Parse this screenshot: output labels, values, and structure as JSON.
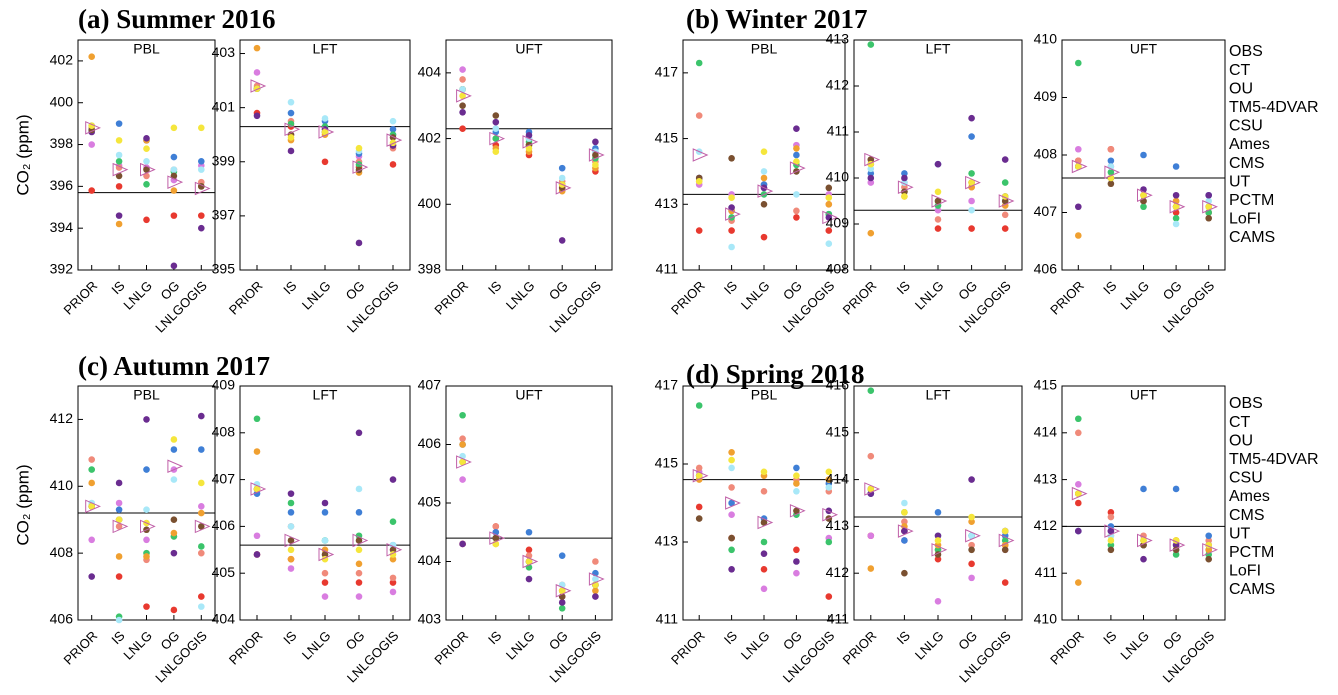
{
  "group_titles": [
    "(a) Summer 2016",
    "(b) Winter 2017",
    "(c) Autumn  2017",
    "(d) Spring 2018"
  ],
  "y_label": "CO₂ (ppm)",
  "categories": [
    "PRIOR",
    "IS",
    "LNLG",
    "OG",
    "LNLGOGIS"
  ],
  "obs_legend": {
    "name": "OBS",
    "color": "#000000"
  },
  "mean_color": "#c060a8",
  "models": [
    {
      "name": "CT",
      "color": "#e8392f"
    },
    {
      "name": "OU",
      "color": "#d97de0"
    },
    {
      "name": "TM5-4DVAR",
      "color": "#f08a7a"
    },
    {
      "name": "CSU",
      "color": "#3f7fd6"
    },
    {
      "name": "Ames",
      "color": "#3bc46b"
    },
    {
      "name": "CMS",
      "color": "#f0a030"
    },
    {
      "name": "UT",
      "color": "#a8e8f8"
    },
    {
      "name": "PCTM",
      "color": "#6a2c90"
    },
    {
      "name": "LoFI",
      "color": "#7a5030"
    },
    {
      "name": "CAMS",
      "color": "#f5e63c"
    }
  ],
  "chart_data": [
    {
      "type": "scatter",
      "title": "PBL",
      "ylim": [
        392,
        403
      ],
      "yticks": [
        392,
        394,
        396,
        398,
        400,
        402
      ],
      "obs": 395.7,
      "mean": [
        398.8,
        396.8,
        396.8,
        396.2,
        395.9
      ],
      "values": [
        [
          395.8,
          396.0,
          394.4,
          394.6,
          394.6
        ],
        [
          398.0,
          397.0,
          396.9,
          396.3,
          397.0
        ],
        [
          398.8,
          396.9,
          396.5,
          396.8,
          396.2
        ],
        [
          398.7,
          399.0,
          398.2,
          397.4,
          397.2
        ],
        [
          398.9,
          397.2,
          396.1,
          396.7,
          396.0
        ],
        [
          402.2,
          394.2,
          398.2,
          395.8,
          396.0
        ],
        [
          398.9,
          397.5,
          397.2,
          396.8,
          396.8
        ],
        [
          398.6,
          394.6,
          398.3,
          392.2,
          394.0
        ],
        [
          398.7,
          396.5,
          396.8,
          396.5,
          396.0
        ],
        [
          398.9,
          398.2,
          397.8,
          398.8,
          398.8
        ]
      ]
    },
    {
      "type": "scatter",
      "title": "LFT",
      "ylim": [
        395,
        403.5
      ],
      "yticks": [
        395,
        397,
        399,
        401,
        403
      ],
      "obs": 400.3,
      "mean": [
        401.8,
        400.2,
        400.1,
        398.8,
        399.8
      ],
      "values": [
        [
          400.8,
          400.3,
          399.0,
          398.8,
          398.9
        ],
        [
          402.3,
          400.0,
          400.2,
          399.2,
          400.0
        ],
        [
          401.8,
          400.5,
          400.1,
          399.0,
          399.5
        ],
        [
          401.7,
          400.8,
          400.5,
          399.3,
          400.2
        ],
        [
          401.7,
          400.4,
          400.3,
          398.9,
          400.0
        ],
        [
          403.2,
          399.8,
          400.0,
          398.6,
          399.6
        ],
        [
          401.7,
          401.2,
          400.6,
          399.4,
          400.5
        ],
        [
          400.7,
          399.4,
          400.2,
          396.0,
          399.6
        ],
        [
          401.7,
          400.0,
          400.1,
          398.7,
          399.9
        ],
        [
          401.7,
          399.9,
          400.1,
          399.5,
          399.7
        ]
      ]
    },
    {
      "type": "scatter",
      "title": "UFT",
      "ylim": [
        398,
        405
      ],
      "yticks": [
        398,
        400,
        402,
        404
      ],
      "obs": 402.3,
      "mean": [
        403.3,
        402.0,
        401.9,
        400.5,
        401.5
      ],
      "values": [
        [
          402.3,
          401.8,
          401.5,
          400.5,
          401.0
        ],
        [
          404.1,
          402.3,
          402.0,
          400.6,
          401.6
        ],
        [
          403.8,
          402.0,
          401.8,
          400.7,
          401.3
        ],
        [
          403.5,
          402.2,
          402.2,
          401.1,
          401.7
        ],
        [
          403.5,
          402.0,
          401.9,
          400.6,
          401.4
        ],
        [
          403.5,
          401.7,
          401.6,
          400.4,
          401.1
        ],
        [
          403.5,
          402.3,
          402.0,
          400.8,
          401.6
        ],
        [
          402.8,
          402.5,
          402.1,
          398.9,
          401.9
        ],
        [
          403.0,
          402.7,
          401.8,
          400.5,
          401.5
        ],
        [
          403.3,
          401.6,
          401.7,
          400.6,
          401.2
        ]
      ]
    },
    {
      "type": "scatter",
      "title": "PBL",
      "ylim": [
        411,
        418
      ],
      "yticks": [
        411,
        413,
        415,
        417
      ],
      "obs": 413.3,
      "mean": [
        414.5,
        412.7,
        413.4,
        414.1,
        412.6
      ],
      "values": [
        [
          412.2,
          412.2,
          412.0,
          412.6,
          412.2
        ],
        [
          413.6,
          413.3,
          413.5,
          414.8,
          413.3
        ],
        [
          415.7,
          412.5,
          413.6,
          412.8,
          413.0
        ],
        [
          413.8,
          412.8,
          413.6,
          414.5,
          412.7
        ],
        [
          417.3,
          412.6,
          413.3,
          414.2,
          412.7
        ],
        [
          413.7,
          412.8,
          413.8,
          414.7,
          413.0
        ],
        [
          414.6,
          411.7,
          414.0,
          413.3,
          411.8
        ],
        [
          413.8,
          412.9,
          413.5,
          415.3,
          412.6
        ],
        [
          413.8,
          414.4,
          413.0,
          414.0,
          413.5
        ],
        [
          413.7,
          413.2,
          414.6,
          414.3,
          413.2
        ]
      ]
    },
    {
      "type": "scatter",
      "title": "LFT",
      "ylim": [
        408,
        413
      ],
      "yticks": [
        408,
        409,
        410,
        411,
        412,
        413
      ],
      "obs": 409.3,
      "mean": [
        410.4,
        409.8,
        409.5,
        409.9,
        409.5
      ],
      "values": [
        [
          410.3,
          409.7,
          408.9,
          408.9,
          408.9
        ],
        [
          409.9,
          409.9,
          409.3,
          409.5,
          409.6
        ],
        [
          410.3,
          409.8,
          409.1,
          409.8,
          409.2
        ],
        [
          410.1,
          410.1,
          410.3,
          410.9,
          409.6
        ],
        [
          412.9,
          409.7,
          409.4,
          410.1,
          409.9
        ],
        [
          408.8,
          409.6,
          409.5,
          409.8,
          409.4
        ],
        [
          410.2,
          409.9,
          409.5,
          409.3,
          409.5
        ],
        [
          410.0,
          410.0,
          410.3,
          411.3,
          410.4
        ],
        [
          410.4,
          409.7,
          409.5,
          409.9,
          409.5
        ],
        [
          410.3,
          409.6,
          409.7,
          409.9,
          409.6
        ]
      ]
    },
    {
      "type": "scatter",
      "title": "UFT",
      "ylim": [
        406,
        410
      ],
      "yticks": [
        406,
        407,
        408,
        409,
        410
      ],
      "obs": 407.6,
      "mean": [
        407.8,
        407.7,
        407.3,
        407.1,
        407.1
      ],
      "values": [
        [
          407.9,
          408.1,
          407.2,
          407.0,
          407.0
        ],
        [
          408.1,
          407.8,
          407.3,
          407.1,
          407.1
        ],
        [
          407.9,
          408.1,
          407.2,
          407.2,
          407.1
        ],
        [
          407.8,
          407.9,
          408.0,
          407.8,
          407.3
        ],
        [
          409.6,
          407.7,
          407.1,
          406.9,
          407.0
        ],
        [
          406.6,
          407.6,
          407.3,
          407.2,
          407.1
        ],
        [
          407.8,
          407.8,
          407.2,
          406.8,
          407.2
        ],
        [
          407.1,
          407.6,
          407.4,
          407.3,
          407.3
        ],
        [
          407.8,
          407.5,
          407.2,
          407.1,
          406.9
        ],
        [
          407.8,
          407.6,
          407.3,
          407.1,
          407.1
        ]
      ]
    },
    {
      "type": "scatter",
      "title": "PBL",
      "ylim": [
        406,
        413
      ],
      "yticks": [
        406,
        408,
        410,
        412
      ],
      "obs": 409.2,
      "mean": [
        409.4,
        408.8,
        408.8,
        410.6,
        408.8
      ],
      "values": [
        [
          409.4,
          407.3,
          406.4,
          406.3,
          406.7
        ],
        [
          408.4,
          409.5,
          408.4,
          410.5,
          409.4
        ],
        [
          410.8,
          408.8,
          407.8,
          408.5,
          408.0
        ],
        [
          409.4,
          409.3,
          410.5,
          411.1,
          411.1
        ],
        [
          410.5,
          406.1,
          408.0,
          408.5,
          408.2
        ],
        [
          410.1,
          407.9,
          407.9,
          408.6,
          409.2
        ],
        [
          409.5,
          406.0,
          409.3,
          410.2,
          406.4
        ],
        [
          407.3,
          410.1,
          412.0,
          408.0,
          412.1
        ],
        [
          409.4,
          409.0,
          408.7,
          409.0,
          408.8
        ],
        [
          409.4,
          409.0,
          408.9,
          411.4,
          410.1
        ]
      ]
    },
    {
      "type": "scatter",
      "title": "LFT",
      "ylim": [
        404,
        409
      ],
      "yticks": [
        404,
        405,
        406,
        407,
        408,
        409
      ],
      "obs": 405.6,
      "mean": [
        406.8,
        405.7,
        405.4,
        405.7,
        405.5
      ],
      "values": [
        [
          405.4,
          405.3,
          404.8,
          404.8,
          404.8
        ],
        [
          405.8,
          405.1,
          404.5,
          404.5,
          404.6
        ],
        [
          406.8,
          406.0,
          405.0,
          405.0,
          404.9
        ],
        [
          406.7,
          406.3,
          406.3,
          406.3,
          405.6
        ],
        [
          408.3,
          406.5,
          405.7,
          405.8,
          406.1
        ],
        [
          407.6,
          405.3,
          405.5,
          405.2,
          405.3
        ],
        [
          406.9,
          406.0,
          405.7,
          406.8,
          405.6
        ],
        [
          405.4,
          406.7,
          406.5,
          408.0,
          407.0
        ],
        [
          406.8,
          405.7,
          405.4,
          405.7,
          405.5
        ],
        [
          406.8,
          405.5,
          405.3,
          405.5,
          405.4
        ]
      ]
    },
    {
      "type": "scatter",
      "title": "UFT",
      "ylim": [
        403,
        407
      ],
      "yticks": [
        403,
        404,
        405,
        406,
        407
      ],
      "obs": 404.4,
      "mean": [
        405.7,
        404.4,
        404.0,
        403.5,
        403.7
      ],
      "values": [
        [
          404.3,
          404.6,
          404.2,
          403.5,
          403.6
        ],
        [
          405.4,
          404.5,
          404.0,
          403.4,
          403.6
        ],
        [
          406.1,
          404.6,
          404.1,
          403.6,
          404.0
        ],
        [
          406.0,
          404.5,
          404.5,
          404.1,
          403.8
        ],
        [
          406.5,
          404.4,
          403.9,
          403.2,
          403.6
        ],
        [
          406.0,
          404.3,
          404.0,
          403.5,
          403.5
        ],
        [
          405.8,
          404.4,
          404.0,
          403.6,
          403.7
        ],
        [
          404.3,
          404.4,
          403.7,
          403.3,
          403.4
        ],
        [
          405.7,
          404.4,
          404.0,
          403.4,
          403.6
        ],
        [
          405.7,
          404.3,
          404.0,
          403.5,
          403.6
        ]
      ]
    },
    {
      "type": "scatter",
      "title": "PBL",
      "ylim": [
        411,
        417
      ],
      "yticks": [
        411,
        413,
        415,
        417
      ],
      "obs": 414.6,
      "mean": [
        414.7,
        414.0,
        413.5,
        413.8,
        413.7
      ],
      "values": [
        [
          413.9,
          413.1,
          412.3,
          412.8,
          411.6
        ],
        [
          414.8,
          413.7,
          411.8,
          412.2,
          413.1
        ],
        [
          414.9,
          414.4,
          414.3,
          414.6,
          414.3
        ],
        [
          414.7,
          414.0,
          413.6,
          414.9,
          414.5
        ],
        [
          416.5,
          412.8,
          413.0,
          413.7,
          413.0
        ],
        [
          414.6,
          415.3,
          414.7,
          414.5,
          414.6
        ],
        [
          414.7,
          414.9,
          413.5,
          414.3,
          414.4
        ],
        [
          414.7,
          412.3,
          412.7,
          412.5,
          413.8
        ],
        [
          413.6,
          413.1,
          413.5,
          413.8,
          413.6
        ],
        [
          414.7,
          415.1,
          414.8,
          414.7,
          414.8
        ]
      ]
    },
    {
      "type": "scatter",
      "title": "LFT",
      "ylim": [
        411,
        416
      ],
      "yticks": [
        411,
        412,
        413,
        414,
        415,
        416
      ],
      "obs": 413.2,
      "mean": [
        413.8,
        412.9,
        412.5,
        412.8,
        412.7
      ],
      "values": [
        [
          412.8,
          412.9,
          412.3,
          412.2,
          411.8
        ],
        [
          412.8,
          412.7,
          411.4,
          411.9,
          412.5
        ],
        [
          414.5,
          413.1,
          412.5,
          412.6,
          412.6
        ],
        [
          413.7,
          412.7,
          413.3,
          412.8,
          412.8
        ],
        [
          415.9,
          413.3,
          412.5,
          412.8,
          412.7
        ],
        [
          412.1,
          413.0,
          412.6,
          413.1,
          412.6
        ],
        [
          413.8,
          413.5,
          412.8,
          412.8,
          412.9
        ],
        [
          413.7,
          412.9,
          412.8,
          414.0,
          412.9
        ],
        [
          413.8,
          412.0,
          412.4,
          412.5,
          412.5
        ],
        [
          413.8,
          413.3,
          412.7,
          413.2,
          412.9
        ]
      ]
    },
    {
      "type": "scatter",
      "title": "UFT",
      "ylim": [
        410,
        415
      ],
      "yticks": [
        410,
        411,
        412,
        413,
        414,
        415
      ],
      "obs": 412.0,
      "mean": [
        412.7,
        411.9,
        411.7,
        411.6,
        411.5
      ],
      "values": [
        [
          412.5,
          412.3,
          411.6,
          411.5,
          411.5
        ],
        [
          412.9,
          411.9,
          411.7,
          411.6,
          411.6
        ],
        [
          414.0,
          412.2,
          411.8,
          411.7,
          411.7
        ],
        [
          411.9,
          412.0,
          412.8,
          412.8,
          411.8
        ],
        [
          414.3,
          411.6,
          411.6,
          411.4,
          411.4
        ],
        [
          410.8,
          411.8,
          411.7,
          411.7,
          411.5
        ],
        [
          412.7,
          411.8,
          411.7,
          411.5,
          411.6
        ],
        [
          411.9,
          411.9,
          411.3,
          411.6,
          411.6
        ],
        [
          412.7,
          411.5,
          411.6,
          411.5,
          411.3
        ],
        [
          412.7,
          411.7,
          411.7,
          411.7,
          411.6
        ]
      ]
    }
  ]
}
